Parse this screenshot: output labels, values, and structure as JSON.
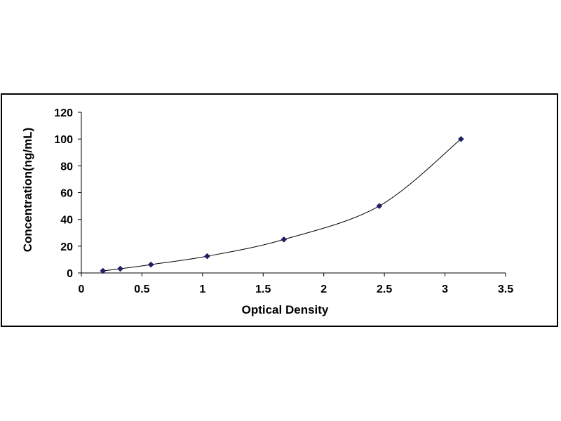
{
  "chart_data": {
    "type": "scatter",
    "title": "",
    "xlabel": "Optical Density",
    "ylabel": "Concentration(ng/mL)",
    "xlim": [
      0,
      3.5
    ],
    "ylim": [
      0,
      120
    ],
    "xticks": [
      "0",
      "0.5",
      "1",
      "1.5",
      "2",
      "2.5",
      "3",
      "3.5"
    ],
    "yticks": [
      "0",
      "20",
      "40",
      "60",
      "80",
      "100",
      "120"
    ],
    "grid": false,
    "legend": "none",
    "series": [
      {
        "x": [
          0.178,
          0.321,
          0.574,
          1.038,
          1.671,
          2.458,
          3.132
        ],
        "y": [
          1.56,
          3.13,
          6.25,
          12.5,
          25,
          50,
          100
        ],
        "marker": "diamond",
        "color": "#1f1f6b",
        "line": "smooth-fit"
      }
    ]
  }
}
